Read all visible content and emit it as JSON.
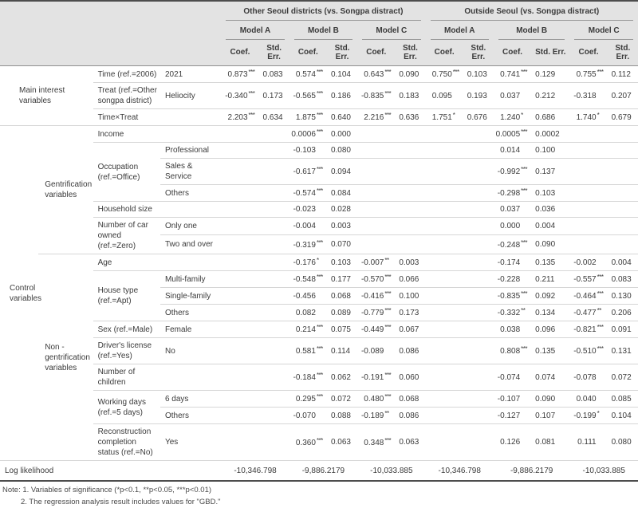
{
  "header": {
    "panels": [
      {
        "label": "Other Seoul districts (vs. Songpa distract)",
        "models": [
          {
            "label": "Model A",
            "stats": [
              "Coef.",
              "Std. Err."
            ]
          },
          {
            "label": "Model B",
            "stats": [
              "Coef.",
              "Std. Err."
            ]
          },
          {
            "label": "Model C",
            "stats": [
              "Coef.",
              "Std. Err."
            ]
          }
        ]
      },
      {
        "label": "Outside Seoul (vs. Songpa distract)",
        "models": [
          {
            "label": "Model A",
            "stats": [
              "Coef.",
              "Std. Err."
            ]
          },
          {
            "label": "Model B",
            "stats": [
              "Coef.",
              "Std. Err."
            ]
          },
          {
            "label": "Model C",
            "stats": [
              "Coef.",
              "Std. Err."
            ]
          }
        ]
      }
    ]
  },
  "body": {
    "rows": [
      {
        "sections": [
          {
            "text": "Main interest variables",
            "colspan": 2,
            "rowspan": 3,
            "cls": "main"
          }
        ],
        "variable": {
          "text": "Time (ref.=2006)"
        },
        "level": "2021",
        "values": [
          "0.873 ***",
          "0.083",
          "0.574 ***",
          "0.104",
          "0.643 ***",
          "0.090",
          "0.750 ***",
          "0.103",
          "0.741 ***",
          "0.129",
          "0.755 ***",
          "0.112"
        ]
      },
      {
        "variable": {
          "text": "Treat (ref.=Other songpa district)"
        },
        "level": "Heliocity",
        "values": [
          "-0.340 ***",
          "0.173",
          "-0.565 ***",
          "0.186",
          "-0.835 ***",
          "0.183",
          "0.095",
          "0.193",
          "0.037",
          "0.212",
          "-0.318",
          "0.207"
        ]
      },
      {
        "variable": {
          "text": "Time×Treat"
        },
        "level": "",
        "values": [
          "2.203 ***",
          "0.634",
          "1.875 ***",
          "0.640",
          "2.216 ***",
          "0.636",
          "1.751 *",
          "0.676",
          "1.240 *",
          "0.686",
          "1.740 *",
          "0.679"
        ]
      },
      {
        "sections": [
          {
            "text": "Control variables",
            "rowspan": 17
          },
          {
            "text": "Gentrification variables",
            "rowspan": 7,
            "cls2": true
          }
        ],
        "variable": {
          "text": "Income"
        },
        "level": "",
        "values": [
          "",
          "",
          "0.0006 ***",
          "0.000",
          "",
          "",
          "",
          "",
          "0.0005 ***",
          "0.0002",
          "",
          ""
        ]
      },
      {
        "variable": {
          "text": "Occupation (ref.=Office)",
          "rowspan": 3
        },
        "level": "Professional",
        "values": [
          "",
          "",
          "-0.103",
          "0.080",
          "",
          "",
          "",
          "",
          "0.014",
          "0.100",
          "",
          ""
        ]
      },
      {
        "level": "Sales & Service",
        "values": [
          "",
          "",
          "-0.617 ***",
          "0.094",
          "",
          "",
          "",
          "",
          "-0.992 ***",
          "0.137",
          "",
          ""
        ]
      },
      {
        "level": "Others",
        "values": [
          "",
          "",
          "-0.574 ***",
          "0.084",
          "",
          "",
          "",
          "",
          "-0.298 ***",
          "0.103",
          "",
          ""
        ]
      },
      {
        "variable": {
          "text": "Household size"
        },
        "level": "",
        "values": [
          "",
          "",
          "-0.023",
          "0.028",
          "",
          "",
          "",
          "",
          "0.037",
          "0.036",
          "",
          ""
        ]
      },
      {
        "variable": {
          "text": "Number of car owned (ref.=Zero)",
          "rowspan": 2
        },
        "level": "Only one",
        "values": [
          "",
          "",
          "-0.004",
          "0.003",
          "",
          "",
          "",
          "",
          "0.000",
          "0.004",
          "",
          ""
        ]
      },
      {
        "level": "Two and over",
        "values": [
          "",
          "",
          "-0.319 ***",
          "0.070",
          "",
          "",
          "",
          "",
          "-0.248 ***",
          "0.090",
          "",
          ""
        ]
      },
      {
        "sections": [
          {
            "text": "Non -gentrification variables",
            "rowspan": 10,
            "cls2": true
          }
        ],
        "variable": {
          "text": "Age"
        },
        "level": "",
        "values": [
          "",
          "",
          "-0.176 *",
          "0.103",
          "-0.007 **",
          "0.003",
          "",
          "",
          "-0.174",
          "0.135",
          "-0.002",
          "0.004"
        ]
      },
      {
        "variable": {
          "text": "House type (ref.=Apt)",
          "rowspan": 3
        },
        "level": "Multi-family",
        "values": [
          "",
          "",
          "-0.548 ***",
          "0.177",
          "-0.570 ***",
          "0.066",
          "",
          "",
          "-0.228",
          "0.211",
          "-0.557 ***",
          "0.083"
        ]
      },
      {
        "level": "Single-family",
        "values": [
          "",
          "",
          "-0.456",
          "0.068",
          "-0.416 ***",
          "0.100",
          "",
          "",
          "-0.835 ***",
          "0.092",
          "-0.464 ***",
          "0.130"
        ]
      },
      {
        "level": "Others",
        "values": [
          "",
          "",
          "0.082",
          "0.089",
          "-0.779 ***",
          "0.173",
          "",
          "",
          "-0.332 **",
          "0.134",
          "-0.477 **",
          "0.206"
        ]
      },
      {
        "variable": {
          "text": "Sex (ref.=Male)"
        },
        "level": "Female",
        "values": [
          "",
          "",
          "0.214 ***",
          "0.075",
          "-0.449 ***",
          "0.067",
          "",
          "",
          "0.038",
          "0.096",
          "-0.821 ***",
          "0.091"
        ]
      },
      {
        "variable": {
          "text": "Driver's license (ref.=Yes)"
        },
        "level": "No",
        "values": [
          "",
          "",
          "0.581 ***",
          "0.114",
          "-0.089",
          "0.086",
          "",
          "",
          "0.808 ***",
          "0.135",
          "-0.510 ***",
          "0.131"
        ]
      },
      {
        "variable": {
          "text": "Number of children"
        },
        "level": "",
        "values": [
          "",
          "",
          "-0.184 ***",
          "0.062",
          "-0.191 ***",
          "0.060",
          "",
          "",
          "-0.074",
          "0.074",
          "-0.078",
          "0.072"
        ]
      },
      {
        "variable": {
          "text": "Working days (ref.=5 days)",
          "rowspan": 2
        },
        "level": "6 days",
        "values": [
          "",
          "",
          "0.295 ***",
          "0.072",
          "0.480 ***",
          "0.068",
          "",
          "",
          "-0.107",
          "0.090",
          "0.040",
          "0.085"
        ]
      },
      {
        "level": "Others",
        "values": [
          "",
          "",
          "-0.070",
          "0.088",
          "-0.189 **",
          "0.086",
          "",
          "",
          "-0.127",
          "0.107",
          "-0.199 *",
          "0.104"
        ]
      },
      {
        "variable": {
          "text": "Reconstruction completion status (ref.=No)"
        },
        "level": "Yes",
        "values": [
          "",
          "",
          "0.360 ***",
          "0.063",
          "0.348 ***",
          "0.063",
          "",
          "",
          "0.126",
          "0.081",
          "0.111",
          "0.080"
        ]
      }
    ],
    "log_likelihood": {
      "label": "Log likelihood",
      "values": [
        "-10,346.798",
        "-9,886.2179",
        "-10,033.885",
        "-10,346.798",
        "-9,886.2179",
        "-10,033.885"
      ]
    }
  },
  "notes": {
    "line1": "Note: 1. Variables of significance (*p<0.1, **p<0.05, ***p<0.01)",
    "line2": "2. The regression analysis result includes values for \"GBD.\""
  }
}
